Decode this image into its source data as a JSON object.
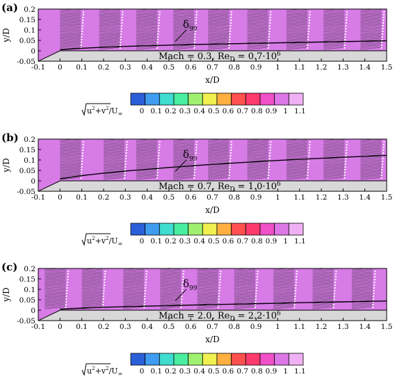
{
  "figure": {
    "colorbar_ticks": [
      "0",
      "0.1",
      "0.2",
      "0.3",
      "0.4",
      "0.5",
      "0.6",
      "0.7",
      "0.8",
      "0.9",
      "1",
      "1.1"
    ],
    "colorbar_label_parts": {
      "u": "u",
      "v": "v",
      "over": "U",
      "inf": "∞"
    },
    "colormap": [
      "#2a5fd8",
      "#3f9cf0",
      "#3fdcd0",
      "#4aeea0",
      "#a0f070",
      "#f0f050",
      "#ffb040",
      "#ff5050",
      "#ff3b6e",
      "#f050c8",
      "#dc78e6",
      "#f0b0f4"
    ],
    "flow_color": "#d77be7",
    "wall_color": "#d8d8d8"
  },
  "chart_data": [
    {
      "type": "heatmap",
      "panel_label": "(a)",
      "title_parts": {
        "mach_prefix": "Mach = ",
        "mach": "0.3",
        "re_prefix": ", Re",
        "re_sub": "D",
        "re_suffix": " = 0.7·10",
        "re_exp": "6"
      },
      "xlabel": "x/D",
      "ylabel": "y/D",
      "xlim": [
        -0.1,
        1.5
      ],
      "ylim": [
        -0.05,
        0.2
      ],
      "xticks": [
        -0.1,
        0,
        0.1,
        0.2,
        0.3,
        0.4,
        0.5,
        0.6,
        0.7,
        0.8,
        0.9,
        1,
        1.1,
        1.2,
        1.3,
        1.4,
        1.5
      ],
      "yticks": [
        -0.05,
        0,
        0.05,
        0.1,
        0.15,
        0.2
      ],
      "annotation": {
        "symbol": "δ",
        "sub": "99"
      },
      "boundary_layer_thickness_d99": {
        "x": [
          0,
          0.1,
          0.2,
          0.3,
          0.5,
          0.7,
          0.9,
          1.1,
          1.3,
          1.5
        ],
        "y": [
          0.005,
          0.012,
          0.017,
          0.021,
          0.027,
          0.032,
          0.036,
          0.04,
          0.044,
          0.048
        ]
      },
      "piv_sample_stations_x": [
        0.0,
        0.18,
        0.35,
        0.52,
        0.68,
        0.86,
        1.04,
        1.21,
        1.38
      ],
      "wall_surface": {
        "x": [
          -0.1,
          0,
          1.5
        ],
        "y": [
          -0.05,
          0,
          0
        ]
      },
      "colorbar_range": [
        0,
        1.1
      ]
    },
    {
      "type": "heatmap",
      "panel_label": "(b)",
      "title_parts": {
        "mach_prefix": "Mach = ",
        "mach": "0.7",
        "re_prefix": ", Re",
        "re_sub": "D",
        "re_suffix": " = 1.0·10",
        "re_exp": "6"
      },
      "xlabel": "x/D",
      "ylabel": "y/D",
      "xlim": [
        -0.1,
        1.5
      ],
      "ylim": [
        -0.05,
        0.2
      ],
      "xticks": [
        -0.1,
        0,
        0.1,
        0.2,
        0.3,
        0.4,
        0.5,
        0.6,
        0.7,
        0.8,
        0.9,
        1,
        1.1,
        1.2,
        1.3,
        1.4,
        1.5
      ],
      "yticks": [
        -0.05,
        0,
        0.05,
        0.1,
        0.15,
        0.2
      ],
      "annotation": {
        "symbol": "δ",
        "sub": "99"
      },
      "boundary_layer_thickness_d99": {
        "x": [
          0,
          0.1,
          0.2,
          0.3,
          0.5,
          0.7,
          0.9,
          1.1,
          1.3,
          1.5
        ],
        "y": [
          0.01,
          0.025,
          0.037,
          0.047,
          0.064,
          0.079,
          0.092,
          0.103,
          0.113,
          0.122
        ]
      },
      "piv_sample_stations_x": [
        0.0,
        0.2,
        0.35,
        0.52,
        0.68,
        0.86,
        1.04,
        1.21,
        1.38
      ],
      "wall_surface": {
        "x": [
          -0.1,
          0,
          1.5
        ],
        "y": [
          -0.05,
          0,
          0
        ]
      },
      "colorbar_range": [
        0,
        1.1
      ]
    },
    {
      "type": "heatmap",
      "panel_label": "(c)",
      "title_parts": {
        "mach_prefix": "Mach = ",
        "mach": "2.0",
        "re_prefix": ", Re",
        "re_sub": "D",
        "re_suffix": " = 2.2·10",
        "re_exp": "6"
      },
      "xlabel": "x/D",
      "ylabel": "y/D",
      "xlim": [
        -0.1,
        1.5
      ],
      "ylim": [
        -0.05,
        0.2
      ],
      "xticks": [
        -0.1,
        0,
        0.1,
        0.2,
        0.3,
        0.4,
        0.5,
        0.6,
        0.7,
        0.8,
        0.9,
        1,
        1.1,
        1.2,
        1.3,
        1.4,
        1.5
      ],
      "yticks": [
        -0.05,
        0,
        0.05,
        0.1,
        0.15,
        0.2
      ],
      "annotation": {
        "symbol": "δ",
        "sub": "99"
      },
      "boundary_layer_thickness_d99": {
        "x": [
          0,
          0.1,
          0.2,
          0.3,
          0.5,
          0.7,
          0.9,
          1.1,
          1.3,
          1.5
        ],
        "y": [
          0.005,
          0.01,
          0.014,
          0.017,
          0.022,
          0.027,
          0.031,
          0.036,
          0.04,
          0.044
        ]
      },
      "piv_sample_stations_x": [
        -0.07,
        0.1,
        0.29,
        0.46,
        0.63,
        0.8,
        0.98,
        1.16,
        1.34
      ],
      "wall_surface": {
        "x": [
          -0.1,
          0,
          1.5
        ],
        "y": [
          -0.05,
          0,
          0
        ]
      },
      "colorbar_range": [
        0,
        1.1
      ]
    }
  ]
}
